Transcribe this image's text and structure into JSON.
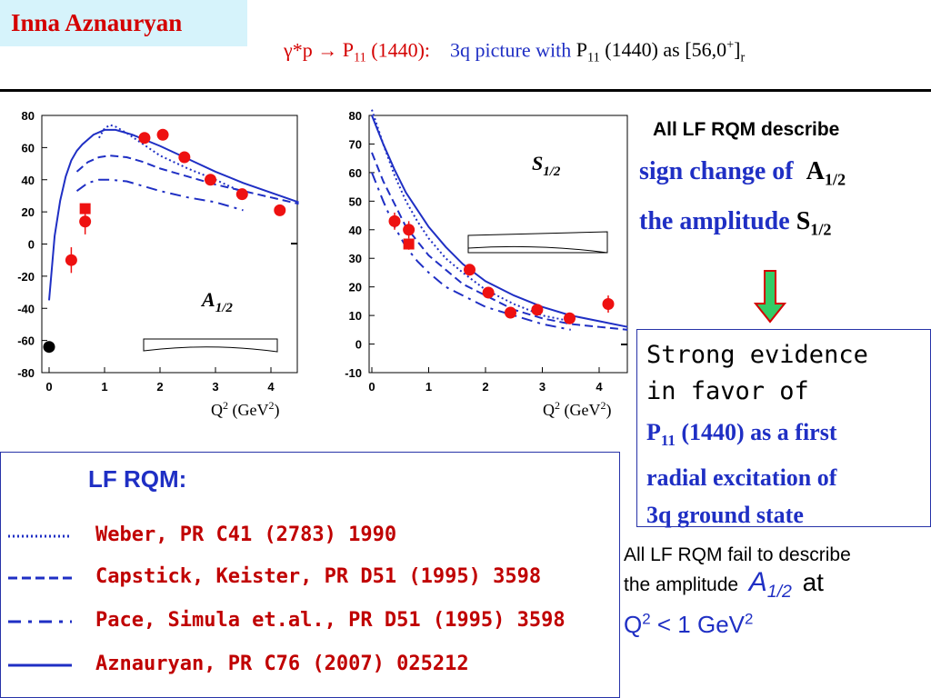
{
  "header": {
    "author": "Inna Aznauryan",
    "title_gamma": "γ*p",
    "title_arrow": "→",
    "title_state": "P",
    "title_state_sub": "11",
    "title_mass": "(1440):",
    "title_picture": "3q picture with",
    "title_state2": "P",
    "title_state2_sub": "11",
    "title_mass2": "(1440) as [56,0",
    "title_sup": "+",
    "title_close": "]",
    "title_sub": "r"
  },
  "colors": {
    "theory": "#1f2fc4",
    "data": "#ee1111",
    "author_bg": "#d6f3fb",
    "arrow": "#33cc66"
  },
  "notes": {
    "describe": "All LF RQM describe",
    "sign_change": "sign change of",
    "amp_A": "A",
    "amp_A_sub": "1/2",
    "the_amplitude": "the amplitude",
    "amp_S": "S",
    "amp_S_sub": "1/2",
    "evidence_line1": "Strong evidence",
    "evidence_line2": "in favor of",
    "evidence_line3_state": "P",
    "evidence_line3_sub": "11",
    "evidence_line3_rest": "(1440) as a first",
    "evidence_line4": "radial excitation of",
    "evidence_line5": "3q ground state",
    "fail_line1": "All LF RQM fail to describe",
    "fail_line2": "the amplitude",
    "fail_A": "A",
    "fail_A_sub": "1/2",
    "fail_at": "at",
    "fail_Q": "Q",
    "fail_Q_sup": "2",
    "fail_rest": "< 1 GeV",
    "fail_rest_sup": "2"
  },
  "legend": {
    "title": "LF RQM:",
    "entries": [
      {
        "style": "dotted",
        "ref": "Weber, PR C41 (2783) 1990"
      },
      {
        "style": "dashed",
        "ref": "Capstick, Keister, PR D51 (1995) 3598"
      },
      {
        "style": "dash-dot",
        "ref": "Pace, Simula et.al., PR D51 (1995) 3598"
      },
      {
        "style": "solid",
        "ref": "Aznauryan, PR C76 (2007) 025212"
      }
    ]
  },
  "chart_data": [
    {
      "type": "scatter",
      "label": "A",
      "label_sub": "1/2",
      "xlabel": "Q",
      "xlabel_sup": "2",
      "xlabel_unit": "(GeV",
      "xlabel_unit_sup": "2",
      "xlabel_close": ")",
      "xlim": [
        0,
        4.5
      ],
      "ylim": [
        -80,
        80
      ],
      "xticks": [
        "0",
        "1",
        "2",
        "3",
        "4"
      ],
      "yticks": [
        "80",
        "60",
        "40",
        "20",
        "0",
        "-20",
        "-40",
        "-60",
        "-80"
      ],
      "points_circle": [
        {
          "x": 0.4,
          "y": -10,
          "err": 8
        },
        {
          "x": 0.65,
          "y": 14,
          "err": 8
        },
        {
          "x": 1.72,
          "y": 66,
          "err": 3
        },
        {
          "x": 2.05,
          "y": 68,
          "err": 3
        },
        {
          "x": 2.44,
          "y": 54,
          "err": 3
        },
        {
          "x": 2.91,
          "y": 40,
          "err": 3
        },
        {
          "x": 3.48,
          "y": 31,
          "err": 3
        },
        {
          "x": 4.16,
          "y": 21,
          "err": 3
        }
      ],
      "points_square": [
        {
          "x": 0.65,
          "y": 22,
          "err": 3
        }
      ],
      "points_black": [
        {
          "x": 0,
          "y": -64
        }
      ],
      "series": [
        {
          "style": "solid",
          "x": [
            0,
            0.05,
            0.1,
            0.2,
            0.3,
            0.4,
            0.5,
            0.6,
            0.8,
            1.0,
            1.2,
            1.5,
            2.0,
            2.5,
            3.0,
            3.5,
            4.0,
            4.5
          ],
          "y": [
            -35,
            -15,
            5,
            27,
            42,
            52,
            58,
            62,
            68,
            71,
            71,
            68,
            61,
            53,
            45,
            38,
            32,
            26
          ]
        },
        {
          "style": "dotted",
          "x": [
            0.9,
            1.0,
            1.1,
            1.2,
            1.4,
            1.7,
            2.0,
            2.5,
            3.0,
            3.5
          ],
          "y": [
            66,
            72,
            74,
            73,
            69,
            62,
            55,
            47,
            40,
            32
          ]
        },
        {
          "style": "dashed",
          "x": [
            0.5,
            0.7,
            0.9,
            1.1,
            1.4,
            1.7,
            2.0,
            2.5,
            3.0,
            3.5,
            4.0,
            4.5
          ],
          "y": [
            45,
            51,
            54,
            55,
            54,
            51,
            47,
            42,
            37,
            33,
            29,
            25
          ]
        },
        {
          "style": "dash-dot",
          "x": [
            0.5,
            0.7,
            0.9,
            1.1,
            1.4,
            1.7,
            2.0,
            2.5,
            3.0,
            3.5
          ],
          "y": [
            33,
            38,
            40,
            40,
            39,
            36,
            33,
            29,
            26,
            21
          ]
        }
      ]
    },
    {
      "type": "scatter",
      "label": "S",
      "label_sub": "1/2",
      "xlabel": "Q",
      "xlabel_sup": "2",
      "xlabel_unit": "(GeV",
      "xlabel_unit_sup": "2",
      "xlabel_close": ")",
      "xlim": [
        0,
        4.5
      ],
      "ylim": [
        -10,
        80
      ],
      "xticks": [
        "0",
        "1",
        "2",
        "3",
        "4"
      ],
      "yticks": [
        "80",
        "70",
        "60",
        "50",
        "40",
        "30",
        "20",
        "10",
        "0",
        "-10"
      ],
      "points_circle": [
        {
          "x": 0.4,
          "y": 43,
          "err": 3
        },
        {
          "x": 0.65,
          "y": 40,
          "err": 3
        },
        {
          "x": 1.72,
          "y": 26,
          "err": 2
        },
        {
          "x": 2.05,
          "y": 18,
          "err": 2
        },
        {
          "x": 2.44,
          "y": 11,
          "err": 2
        },
        {
          "x": 2.91,
          "y": 12,
          "err": 2
        },
        {
          "x": 3.48,
          "y": 9,
          "err": 2
        },
        {
          "x": 4.16,
          "y": 14,
          "err": 3
        }
      ],
      "points_square": [
        {
          "x": 0.65,
          "y": 35,
          "err": 2
        }
      ],
      "points_black": [],
      "series": [
        {
          "style": "solid",
          "x": [
            0,
            0.2,
            0.4,
            0.6,
            0.8,
            1.0,
            1.3,
            1.6,
            2.0,
            2.5,
            3.0,
            3.5,
            4.0,
            4.5
          ],
          "y": [
            80,
            70,
            61,
            53,
            47,
            41,
            34,
            28,
            22,
            17,
            13,
            10,
            8,
            6
          ]
        },
        {
          "style": "dotted",
          "x": [
            0,
            0.2,
            0.4,
            0.6,
            0.8,
            1.0,
            1.3,
            1.6,
            2.0,
            2.5,
            3.0,
            3.5
          ],
          "y": [
            82,
            70,
            59,
            50,
            43,
            37,
            30,
            25,
            19,
            14,
            10,
            8
          ]
        },
        {
          "style": "dashed",
          "x": [
            0,
            0.2,
            0.4,
            0.6,
            0.8,
            1.0,
            1.3,
            1.6,
            2.0,
            2.5,
            3.0,
            3.5,
            4.0,
            4.5
          ],
          "y": [
            67,
            57,
            49,
            41,
            36,
            31,
            26,
            21,
            17,
            12,
            9,
            7,
            6,
            5
          ]
        },
        {
          "style": "dash-dot",
          "x": [
            0,
            0.2,
            0.4,
            0.6,
            0.8,
            1.0,
            1.3,
            1.6,
            2.0,
            2.5,
            3.0,
            3.5
          ],
          "y": [
            60,
            50,
            41,
            34,
            29,
            25,
            20,
            17,
            13,
            10,
            7,
            5
          ]
        }
      ]
    }
  ]
}
